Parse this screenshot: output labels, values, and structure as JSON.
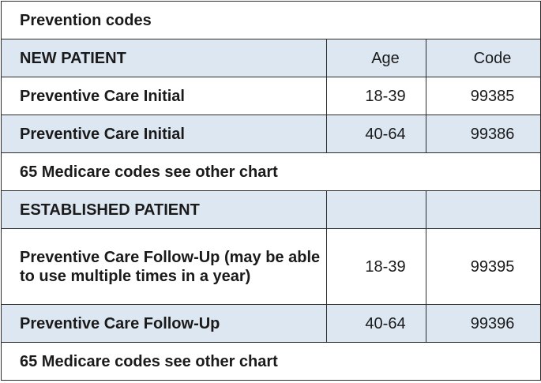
{
  "title": "Prevention codes",
  "new_patient": {
    "heading": "NEW PATIENT",
    "col_age": "Age",
    "col_code": "Code",
    "rows": [
      {
        "label": "Preventive Care Initial",
        "age": "18-39",
        "code": "99385"
      },
      {
        "label": "Preventive Care Initial",
        "age": "40-64",
        "code": "99386"
      }
    ],
    "note": "65 Medicare codes see other chart"
  },
  "established_patient": {
    "heading": "ESTABLISHED PATIENT",
    "rows": [
      {
        "label": "Preventive Care Follow-Up (may be able to use multiple times in a year)",
        "age": "18-39",
        "code": "99395"
      },
      {
        "label": "Preventive Care Follow-Up",
        "age": "40-64",
        "code": "99396"
      }
    ],
    "note": "65 Medicare codes see other chart"
  },
  "colors": {
    "shade": "#dde7f2",
    "border": "#2b2b2b"
  }
}
